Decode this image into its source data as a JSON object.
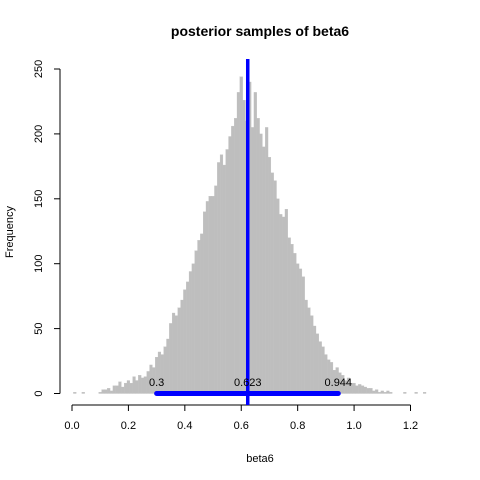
{
  "chart_data": {
    "type": "bar",
    "title": "posterior samples of beta6",
    "xlabel": "beta6",
    "ylabel": "Frequency",
    "xlim": [
      0.0,
      1.25
    ],
    "ylim": [
      0,
      250
    ],
    "xticks": [
      0.0,
      0.2,
      0.4,
      0.6,
      0.8,
      1.0,
      1.2
    ],
    "xtick_labels": [
      "0.0",
      "0.2",
      "0.4",
      "0.6",
      "0.8",
      "1.0",
      "1.2"
    ],
    "yticks": [
      0,
      50,
      100,
      150,
      200,
      250
    ],
    "ytick_labels": [
      "0",
      "50",
      "100",
      "150",
      "200",
      "250"
    ],
    "grid": false,
    "bar_color": "#bebebe",
    "bin_width": 0.01,
    "bins": [
      [
        0.01,
        1
      ],
      [
        0.04,
        1
      ],
      [
        0.1,
        1
      ],
      [
        0.11,
        3
      ],
      [
        0.12,
        3
      ],
      [
        0.13,
        4
      ],
      [
        0.14,
        2
      ],
      [
        0.15,
        6
      ],
      [
        0.16,
        6
      ],
      [
        0.17,
        9
      ],
      [
        0.18,
        5
      ],
      [
        0.19,
        8
      ],
      [
        0.2,
        10
      ],
      [
        0.21,
        8
      ],
      [
        0.22,
        13
      ],
      [
        0.23,
        10
      ],
      [
        0.24,
        14
      ],
      [
        0.25,
        12
      ],
      [
        0.26,
        13
      ],
      [
        0.27,
        17
      ],
      [
        0.28,
        22
      ],
      [
        0.29,
        20
      ],
      [
        0.3,
        28
      ],
      [
        0.31,
        32
      ],
      [
        0.32,
        30
      ],
      [
        0.33,
        36
      ],
      [
        0.34,
        42
      ],
      [
        0.35,
        54
      ],
      [
        0.36,
        62
      ],
      [
        0.37,
        60
      ],
      [
        0.38,
        66
      ],
      [
        0.39,
        72
      ],
      [
        0.4,
        80
      ],
      [
        0.41,
        86
      ],
      [
        0.42,
        94
      ],
      [
        0.43,
        100
      ],
      [
        0.44,
        110
      ],
      [
        0.45,
        118
      ],
      [
        0.46,
        123
      ],
      [
        0.47,
        140
      ],
      [
        0.48,
        148
      ],
      [
        0.49,
        152
      ],
      [
        0.5,
        152
      ],
      [
        0.51,
        160
      ],
      [
        0.52,
        178
      ],
      [
        0.53,
        184
      ],
      [
        0.54,
        176
      ],
      [
        0.55,
        188
      ],
      [
        0.56,
        198
      ],
      [
        0.57,
        206
      ],
      [
        0.58,
        212
      ],
      [
        0.59,
        232
      ],
      [
        0.6,
        244
      ],
      [
        0.61,
        226
      ],
      [
        0.62,
        210
      ],
      [
        0.63,
        240
      ],
      [
        0.64,
        205
      ],
      [
        0.65,
        232
      ],
      [
        0.66,
        212
      ],
      [
        0.67,
        200
      ],
      [
        0.68,
        190
      ],
      [
        0.69,
        205
      ],
      [
        0.7,
        182
      ],
      [
        0.71,
        170
      ],
      [
        0.72,
        164
      ],
      [
        0.73,
        150
      ],
      [
        0.74,
        138
      ],
      [
        0.75,
        136
      ],
      [
        0.76,
        142
      ],
      [
        0.77,
        120
      ],
      [
        0.78,
        115
      ],
      [
        0.79,
        108
      ],
      [
        0.8,
        100
      ],
      [
        0.81,
        96
      ],
      [
        0.82,
        90
      ],
      [
        0.83,
        72
      ],
      [
        0.84,
        66
      ],
      [
        0.85,
        60
      ],
      [
        0.86,
        52
      ],
      [
        0.87,
        46
      ],
      [
        0.88,
        40
      ],
      [
        0.89,
        36
      ],
      [
        0.9,
        30
      ],
      [
        0.91,
        26
      ],
      [
        0.92,
        24
      ],
      [
        0.93,
        18
      ],
      [
        0.94,
        20
      ],
      [
        0.95,
        16
      ],
      [
        0.96,
        14
      ],
      [
        0.97,
        10
      ],
      [
        0.98,
        12
      ],
      [
        0.99,
        8
      ],
      [
        1.0,
        8
      ],
      [
        1.01,
        6
      ],
      [
        1.02,
        7
      ],
      [
        1.03,
        6
      ],
      [
        1.04,
        5
      ],
      [
        1.05,
        4
      ],
      [
        1.06,
        4
      ],
      [
        1.07,
        2
      ],
      [
        1.08,
        3
      ],
      [
        1.09,
        1
      ],
      [
        1.1,
        2
      ],
      [
        1.11,
        1
      ],
      [
        1.12,
        2
      ],
      [
        1.13,
        1
      ],
      [
        1.18,
        1
      ],
      [
        1.22,
        1
      ],
      [
        1.25,
        1
      ]
    ],
    "mean_line": {
      "x": 0.623,
      "color": "#0000ff"
    },
    "interval": {
      "lower": 0.3,
      "upper": 0.944,
      "y": 0,
      "color": "#0000ff"
    },
    "annotations": [
      {
        "text": "0.3",
        "x": 0.3
      },
      {
        "text": "0.623",
        "x": 0.623
      },
      {
        "text": "0.944",
        "x": 0.944
      }
    ]
  }
}
